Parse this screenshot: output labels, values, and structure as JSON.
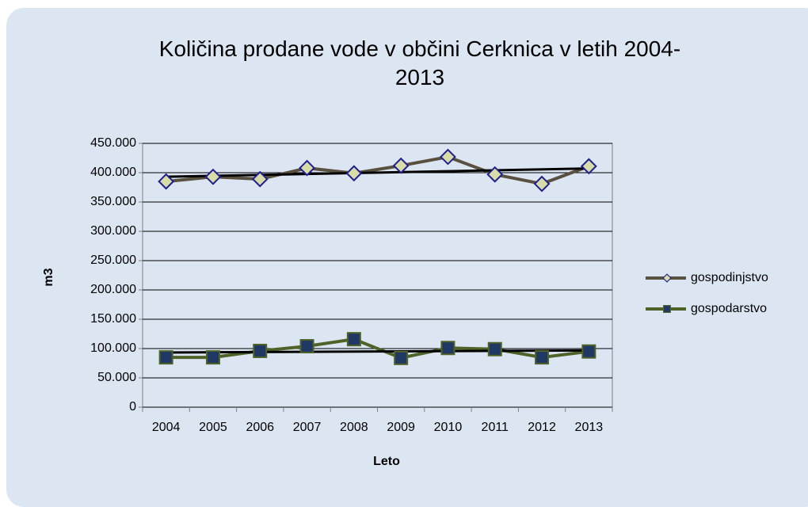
{
  "chart_data": {
    "type": "line",
    "title": "Količina prodane vode v občini Cerknica v letih 2004-2013",
    "x_label": "Leto",
    "y_label": "m3",
    "categories": [
      "2004",
      "2005",
      "2006",
      "2007",
      "2008",
      "2009",
      "2010",
      "2011",
      "2012",
      "2013"
    ],
    "series": [
      {
        "name": "gospodinjstvo",
        "color": "#5a5040",
        "marker": "diamond",
        "marker_color": "#d8dca8",
        "marker_edge": "#1f1f8f",
        "values": [
          385000,
          393000,
          389000,
          408000,
          399000,
          412000,
          427000,
          397000,
          381000,
          411000
        ]
      },
      {
        "name": "gospodarstvo",
        "color": "#4f6228",
        "marker": "square",
        "marker_color": "#1f3864",
        "marker_edge": "#4f6228",
        "values": [
          85000,
          85000,
          96000,
          104000,
          116000,
          84000,
          101000,
          99000,
          85000,
          95000
        ]
      }
    ],
    "trendline": true,
    "trendline_color": "#000000",
    "ylim": [
      0,
      450000
    ],
    "yticks": [
      0,
      {
        "value": 50000,
        "label": "50.000"
      },
      {
        "value": 100000,
        "label": "100.000"
      },
      {
        "value": 150000,
        "label": "150.000"
      },
      {
        "value": 200000,
        "label": "200.000"
      },
      {
        "value": 250000,
        "label": "250.000"
      },
      {
        "value": 300000,
        "label": "300.000"
      },
      {
        "value": 350000,
        "label": "350.000"
      },
      {
        "value": 400000,
        "label": "400.000"
      },
      {
        "value": 450000,
        "label": "450.000"
      }
    ],
    "grid": true,
    "legend": "right"
  }
}
